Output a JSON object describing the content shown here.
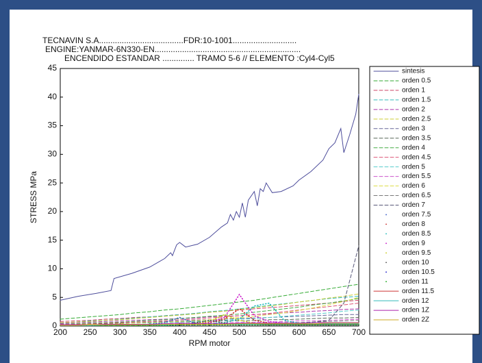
{
  "chart_data": {
    "type": "line",
    "title_lines": [
      "TECNAVIN S.A.....................................FDR:10-1001............................",
      "ENGINE:YANMAR-6N330-EN................................................................",
      "ENCENDIDO ESTANDAR .............. TRAMO 5-6 // ELEMENTO :Cyl4-Cyl5"
    ],
    "xlabel": "RPM motor",
    "ylabel": "STRESS MPa",
    "xlim": [
      200,
      700
    ],
    "ylim": [
      0,
      45
    ],
    "xticks": [
      200,
      250,
      300,
      350,
      400,
      450,
      500,
      550,
      600,
      650,
      700
    ],
    "yticks": [
      0,
      5,
      10,
      15,
      20,
      25,
      30,
      35,
      40,
      45
    ],
    "grid": false,
    "legend": "right",
    "x": [
      200,
      225,
      250,
      275,
      300,
      325,
      350,
      375,
      400,
      425,
      450,
      475,
      500,
      525,
      550,
      575,
      600,
      625,
      650,
      675,
      700
    ],
    "series": [
      {
        "name": "sintesis",
        "color": "#4b4b9a",
        "style": "solid",
        "x": [
          200,
          230,
          260,
          285,
          290,
          320,
          350,
          375,
          385,
          388,
          395,
          400,
          410,
          430,
          450,
          470,
          480,
          485,
          490,
          495,
          500,
          505,
          510,
          515,
          525,
          530,
          535,
          540,
          545,
          555,
          570,
          590,
          600,
          620,
          640,
          650,
          660,
          670,
          675,
          685,
          695,
          700
        ],
        "values": [
          4.5,
          5.2,
          5.7,
          6.2,
          8.3,
          9.2,
          10.3,
          11.8,
          12.8,
          12.3,
          14.2,
          14.6,
          13.8,
          14.3,
          15.5,
          17.3,
          18.0,
          19.5,
          18.5,
          20.0,
          19.0,
          21.5,
          19.0,
          22.0,
          23.5,
          21.0,
          24.0,
          23.5,
          25.0,
          23.3,
          23.5,
          24.5,
          25.5,
          27.0,
          29.0,
          31.0,
          32.0,
          34.5,
          30.3,
          33.5,
          37.0,
          40.5
        ]
      },
      {
        "name": "orden 0.5",
        "color": "#33aa33",
        "style": "dashed",
        "values": [
          1.2,
          1.4,
          1.6,
          1.8,
          2.0,
          2.3,
          2.5,
          2.8,
          3.0,
          3.3,
          3.6,
          3.9,
          4.2,
          4.5,
          4.9,
          5.3,
          5.7,
          6.1,
          6.5,
          6.9,
          7.3
        ]
      },
      {
        "name": "orden 1",
        "color": "#cc4466",
        "style": "dashed",
        "values": [
          0.8,
          0.9,
          1.0,
          1.2,
          1.3,
          1.5,
          1.6,
          1.8,
          2.0,
          2.2,
          2.4,
          2.6,
          2.8,
          3.0,
          3.2,
          3.4,
          3.6,
          3.8,
          4.0,
          4.3,
          4.5
        ]
      },
      {
        "name": "orden 1.5",
        "color": "#33bbbb",
        "style": "dashed",
        "values": [
          0.6,
          0.7,
          0.9,
          1.0,
          1.2,
          1.4,
          1.6,
          1.8,
          2.0,
          2.2,
          2.5,
          2.7,
          3.0,
          3.3,
          3.6,
          3.9,
          4.2,
          4.5,
          4.8,
          5.0,
          5.2
        ]
      },
      {
        "name": "orden 2",
        "color": "#aa33aa",
        "style": "dashed",
        "values": [
          0.5,
          0.6,
          0.7,
          0.8,
          0.9,
          1.0,
          1.1,
          1.2,
          1.3,
          1.4,
          1.6,
          1.7,
          1.8,
          2.0,
          2.1,
          2.3,
          2.4,
          2.6,
          2.7,
          2.9,
          3.0
        ]
      },
      {
        "name": "orden 2.5",
        "color": "#cccc33",
        "style": "dashed",
        "values": [
          0.6,
          0.7,
          0.8,
          1.0,
          1.1,
          1.3,
          1.5,
          1.7,
          1.9,
          2.1,
          2.4,
          2.6,
          2.9,
          3.2,
          3.5,
          3.8,
          4.2,
          4.5,
          4.9,
          5.2,
          5.6
        ]
      },
      {
        "name": "orden 3",
        "color": "#666699",
        "style": "dashed",
        "values": [
          0.4,
          0.4,
          0.5,
          0.5,
          0.6,
          0.7,
          0.7,
          0.8,
          0.9,
          1.0,
          1.1,
          1.2,
          1.3,
          1.4,
          1.5,
          1.6,
          1.7,
          1.8,
          1.9,
          2.0,
          2.0
        ]
      },
      {
        "name": "orden 3.5",
        "color": "#556655",
        "style": "dashed",
        "values": [
          0.3,
          0.3,
          0.4,
          0.4,
          0.5,
          0.5,
          0.6,
          0.6,
          0.7,
          0.7,
          0.8,
          0.9,
          0.9,
          1.0,
          1.1,
          1.1,
          1.2,
          1.3,
          1.4,
          1.4,
          1.5
        ]
      },
      {
        "name": "orden 4",
        "color": "#44aa44",
        "style": "dashed",
        "values": [
          0.3,
          0.4,
          0.5,
          0.6,
          0.7,
          0.8,
          1.0,
          1.1,
          1.3,
          1.5,
          1.7,
          1.9,
          2.1,
          2.4,
          2.7,
          3.0,
          3.3,
          3.7,
          4.0,
          4.4,
          4.8
        ]
      },
      {
        "name": "orden 4.5",
        "color": "#dd5577",
        "style": "dashed",
        "values": [
          0.3,
          0.3,
          0.4,
          0.5,
          0.6,
          0.7,
          0.8,
          0.9,
          1.1,
          1.2,
          1.4,
          1.6,
          1.8,
          2.0,
          2.2,
          2.5,
          2.8,
          3.1,
          3.4,
          3.7,
          4.0
        ]
      },
      {
        "name": "orden 5",
        "color": "#55cccc",
        "style": "dashed",
        "values": [
          0.2,
          0.2,
          0.3,
          0.3,
          0.4,
          0.5,
          0.5,
          0.6,
          0.7,
          0.8,
          0.9,
          1.0,
          1.2,
          1.3,
          1.5,
          1.7,
          1.9,
          2.1,
          2.3,
          2.6,
          2.8
        ]
      },
      {
        "name": "orden 5.5",
        "color": "#cc55cc",
        "style": "dashed",
        "values": [
          0.2,
          0.2,
          0.2,
          0.2,
          0.3,
          0.3,
          0.3,
          0.4,
          0.4,
          0.5,
          0.5,
          0.6,
          0.6,
          0.7,
          0.7,
          0.8,
          0.9,
          0.9,
          1.0,
          1.1,
          1.2
        ]
      },
      {
        "name": "orden 6",
        "color": "#dddd44",
        "style": "dashed",
        "values": [
          0.2,
          0.2,
          0.3,
          0.3,
          0.4,
          0.5,
          0.6,
          0.7,
          0.8,
          0.9,
          1.1,
          1.3,
          1.5,
          1.7,
          2.0,
          2.3,
          2.7,
          3.2,
          3.7,
          4.3,
          5.0
        ]
      },
      {
        "name": "orden 6.5",
        "color": "#777777",
        "style": "dashed",
        "values": [
          0.1,
          0.1,
          0.1,
          0.2,
          0.2,
          0.2,
          0.2,
          0.3,
          0.3,
          0.3,
          0.4,
          0.4,
          0.4,
          0.5,
          0.5,
          0.6,
          0.6,
          0.7,
          0.8,
          0.9,
          1.0
        ]
      },
      {
        "name": "orden 7",
        "color": "#555577",
        "style": "dashed",
        "values": [
          0.1,
          0.1,
          0.1,
          0.1,
          0.1,
          0.1,
          0.2,
          0.2,
          0.2,
          0.2,
          0.2,
          0.3,
          0.3,
          0.3,
          0.3,
          0.4,
          0.5,
          0.7,
          1.0,
          4.0,
          14.0
        ]
      },
      {
        "name": "orden 7.5",
        "color": "#4466cc",
        "style": "dotted",
        "values": [
          0.1,
          0.1,
          0.1,
          0.1,
          0.2,
          0.2,
          0.3,
          0.6,
          1.5,
          0.5,
          0.3,
          0.3,
          0.3,
          0.3,
          0.3,
          0.3,
          0.3,
          0.3,
          0.3,
          0.3,
          0.3
        ]
      },
      {
        "name": "orden 8",
        "color": "#cc3333",
        "style": "dotted",
        "values": [
          0.1,
          0.1,
          0.1,
          0.1,
          0.1,
          0.2,
          0.2,
          0.2,
          0.3,
          0.4,
          0.6,
          1.2,
          3.0,
          1.0,
          0.5,
          0.4,
          0.3,
          0.3,
          0.3,
          0.3,
          0.3
        ]
      },
      {
        "name": "orden 8.5",
        "color": "#22bbbb",
        "style": "dotted",
        "values": [
          0.1,
          0.1,
          0.1,
          0.1,
          0.1,
          0.1,
          0.2,
          0.2,
          0.2,
          0.3,
          0.4,
          0.6,
          1.2,
          3.5,
          4.0,
          1.0,
          0.5,
          0.4,
          0.3,
          0.3,
          0.3
        ]
      },
      {
        "name": "orden 9",
        "color": "#cc22cc",
        "style": "dotted",
        "values": [
          0.1,
          0.1,
          0.1,
          0.1,
          0.1,
          0.1,
          0.2,
          0.2,
          0.3,
          0.4,
          0.7,
          1.5,
          5.5,
          1.8,
          0.8,
          0.5,
          0.4,
          0.3,
          0.3,
          0.3,
          0.3
        ]
      },
      {
        "name": "orden 9.5",
        "color": "#cccc22",
        "style": "dotted",
        "values": [
          0.1,
          0.1,
          0.1,
          0.1,
          0.1,
          0.1,
          0.2,
          0.2,
          0.3,
          0.4,
          0.8,
          2.0,
          1.0,
          0.5,
          0.4,
          0.3,
          0.3,
          0.3,
          0.3,
          0.3,
          0.3
        ]
      },
      {
        "name": "orden 10",
        "color": "#555555",
        "style": "dotted",
        "values": [
          0.1,
          0.1,
          0.1,
          0.1,
          0.1,
          0.1,
          0.2,
          0.2,
          0.3,
          0.5,
          1.0,
          0.5,
          0.3,
          0.3,
          0.2,
          0.2,
          0.2,
          0.2,
          0.2,
          0.2,
          0.2
        ]
      },
      {
        "name": "orden 10.5",
        "color": "#2222cc",
        "style": "dotted",
        "values": [
          0.1,
          0.1,
          0.1,
          0.1,
          0.1,
          0.1,
          0.1,
          0.2,
          0.2,
          0.2,
          0.3,
          0.3,
          0.2,
          0.2,
          0.2,
          0.2,
          0.2,
          0.2,
          0.2,
          0.2,
          0.2
        ]
      },
      {
        "name": "orden 11",
        "color": "#22aa22",
        "style": "dotted",
        "values": [
          0.1,
          0.1,
          0.1,
          0.1,
          0.1,
          0.1,
          0.1,
          0.1,
          0.2,
          0.2,
          0.2,
          0.2,
          0.2,
          0.2,
          0.2,
          0.2,
          0.2,
          0.2,
          0.2,
          0.2,
          0.2
        ]
      },
      {
        "name": "orden 11.5",
        "color": "#cc3333",
        "style": "solid",
        "values": [
          0.2,
          0.2,
          0.2,
          0.2,
          0.2,
          0.2,
          0.3,
          0.3,
          0.3,
          0.3,
          0.3,
          0.3,
          0.4,
          0.4,
          0.4,
          0.4,
          0.4,
          0.4,
          0.5,
          0.5,
          0.5
        ]
      },
      {
        "name": "orden 12",
        "color": "#33bbbb",
        "style": "solid",
        "values": [
          0.1,
          0.1,
          0.1,
          0.2,
          0.2,
          0.2,
          0.2,
          0.2,
          0.3,
          0.3,
          0.3,
          0.3,
          0.3,
          0.3,
          0.4,
          0.4,
          0.4,
          0.4,
          0.4,
          0.4,
          0.4
        ]
      },
      {
        "name": "orden 1Z",
        "color": "#aa22aa",
        "style": "solid",
        "values": [
          0.2,
          0.2,
          0.2,
          0.3,
          0.3,
          0.3,
          0.3,
          0.4,
          0.5,
          0.4,
          0.4,
          0.4,
          0.5,
          0.5,
          0.5,
          0.5,
          0.5,
          0.6,
          0.6,
          0.6,
          0.6
        ]
      },
      {
        "name": "orden 2Z",
        "color": "#ccaa22",
        "style": "solid",
        "values": [
          0.1,
          0.1,
          0.2,
          0.2,
          0.2,
          0.2,
          0.2,
          0.3,
          0.3,
          0.3,
          0.3,
          0.3,
          0.4,
          0.4,
          0.4,
          0.4,
          0.4,
          0.4,
          0.5,
          0.5,
          0.5
        ]
      }
    ]
  }
}
